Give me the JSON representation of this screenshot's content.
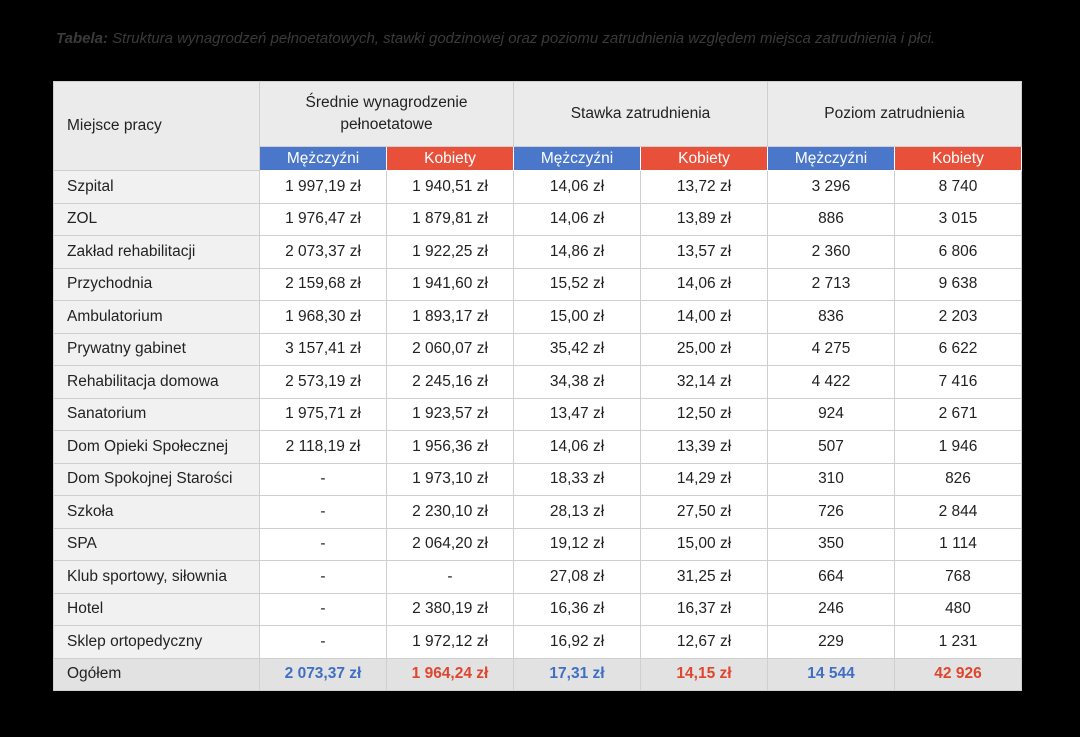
{
  "header": {
    "caption_label": "Tabela:",
    "caption_text": "Struktura wynagrodzeń pełnoetatowych, stawki godzinowej oraz poziomu zatrudnienia względem miejsca zatrudnienia i płci."
  },
  "table": {
    "first_column": "Miejsce pracy",
    "groups": [
      {
        "label": "Średnie wynagrodzenie pełnoetatowe",
        "subheaders": [
          "Mężczyźni",
          "Kobiety"
        ]
      },
      {
        "label": "Stawka zatrudnienia",
        "subheaders": [
          "Mężczyźni",
          "Kobiety"
        ]
      },
      {
        "label": "Poziom zatrudnienia",
        "subheaders": [
          "Mężczyźni",
          "Kobiety"
        ]
      }
    ],
    "rows": [
      [
        "Szpital",
        "1 997,19 zł",
        "1 940,51 zł",
        "14,06 zł",
        "13,72 zł",
        "3 296",
        "8 740"
      ],
      [
        "ZOL",
        "1 976,47 zł",
        "1 879,81 zł",
        "14,06 zł",
        "13,89 zł",
        "886",
        "3 015"
      ],
      [
        "Zakład rehabilitacji",
        "2 073,37 zł",
        "1 922,25 zł",
        "14,86 zł",
        "13,57 zł",
        "2 360",
        "6 806"
      ],
      [
        "Przychodnia",
        "2 159,68 zł",
        "1 941,60 zł",
        "15,52 zł",
        "14,06 zł",
        "2 713",
        "9 638"
      ],
      [
        "Ambulatorium",
        "1 968,30 zł",
        "1 893,17 zł",
        "15,00 zł",
        "14,00 zł",
        "836",
        "2 203"
      ],
      [
        "Prywatny gabinet",
        "3 157,41 zł",
        "2 060,07 zł",
        "35,42 zł",
        "25,00 zł",
        "4 275",
        "6 622"
      ],
      [
        "Rehabilitacja domowa",
        "2 573,19 zł",
        "2 245,16 zł",
        "34,38 zł",
        "32,14 zł",
        "4 422",
        "7 416"
      ],
      [
        "Sanatorium",
        "1 975,71 zł",
        "1 923,57 zł",
        "13,47 zł",
        "12,50 zł",
        "924",
        "2 671"
      ],
      [
        "Dom Opieki Społecznej",
        "2 118,19 zł",
        "1 956,36 zł",
        "14,06 zł",
        "13,39 zł",
        "507",
        "1 946"
      ],
      [
        "Dom Spokojnej Starości",
        "-",
        "1 973,10 zł",
        "18,33 zł",
        "14,29 zł",
        "310",
        "826"
      ],
      [
        "Szkoła",
        "-",
        "2 230,10 zł",
        "28,13 zł",
        "27,50 zł",
        "726",
        "2 844"
      ],
      [
        "SPA",
        "-",
        "2 064,20 zł",
        "19,12 zł",
        "15,00 zł",
        "350",
        "1 114"
      ],
      [
        "Klub sportowy, siłownia",
        "-",
        "-",
        "27,08 zł",
        "31,25 zł",
        "664",
        "768"
      ],
      [
        "Hotel",
        "-",
        "2 380,19 zł",
        "16,36 zł",
        "16,37 zł",
        "246",
        "480"
      ],
      [
        "Sklep ortopedyczny",
        "-",
        "1 972,12 zł",
        "16,92 zł",
        "12,67 zł",
        "229",
        "1 231"
      ]
    ],
    "total": [
      "Ogółem",
      "2 073,37 zł",
      "1 964,24 zł",
      "17,31 zł",
      "14,15 zł",
      "14 544",
      "42 926"
    ]
  }
}
